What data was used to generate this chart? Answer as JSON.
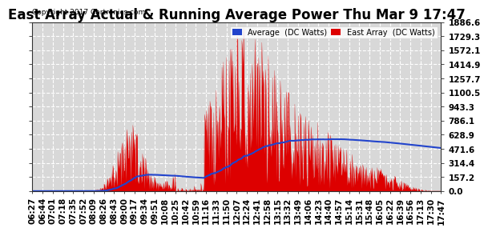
{
  "title": "East Array Actual & Running Average Power Thu Mar 9 17:47",
  "copyright": "Copyright 2017 Cartronics.com",
  "legend_labels": [
    "Average  (DC Watts)",
    "East Array  (DC Watts)"
  ],
  "yticks": [
    0.0,
    157.2,
    314.4,
    471.6,
    628.9,
    786.1,
    943.3,
    1100.5,
    1257.7,
    1414.9,
    1572.1,
    1729.3,
    1886.6
  ],
  "ylim": [
    0.0,
    1886.6
  ],
  "bg_color": "#ffffff",
  "plot_bg_color": "#d8d8d8",
  "grid_color": "#ffffff",
  "title_fontsize": 12,
  "tick_fontsize": 7.5,
  "n_points": 680,
  "xtick_labels": [
    "06:27",
    "06:44",
    "07:01",
    "07:18",
    "07:35",
    "07:52",
    "08:09",
    "08:26",
    "08:43",
    "09:00",
    "09:17",
    "09:34",
    "09:51",
    "10:08",
    "10:25",
    "10:42",
    "10:59",
    "11:16",
    "11:33",
    "11:50",
    "12:07",
    "12:24",
    "12:41",
    "12:58",
    "13:15",
    "13:32",
    "13:49",
    "14:06",
    "14:23",
    "14:40",
    "14:57",
    "15:14",
    "15:31",
    "15:48",
    "16:05",
    "16:22",
    "16:39",
    "16:56",
    "17:13",
    "17:30",
    "17:47"
  ]
}
